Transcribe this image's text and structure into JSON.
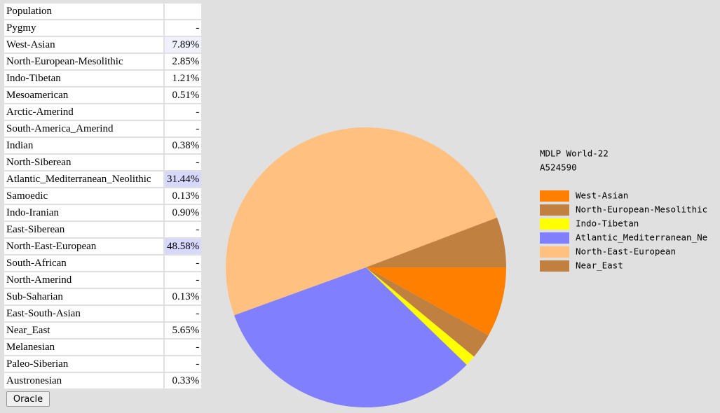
{
  "table": {
    "header": {
      "title": "Population"
    },
    "rows": [
      [
        "Pygmy",
        "-"
      ],
      [
        "West-Asian",
        "7.89%"
      ],
      [
        "North-European-Mesolithic",
        "2.85%"
      ],
      [
        "Indo-Tibetan",
        "1.21%"
      ],
      [
        "Mesoamerican",
        "0.51%"
      ],
      [
        "Arctic-Amerind",
        "-"
      ],
      [
        "South-America_Amerind",
        "-"
      ],
      [
        "Indian",
        "0.38%"
      ],
      [
        "North-Siberean",
        "-"
      ],
      [
        "Atlantic_Mediterranean_Neolithic",
        "31.44%"
      ],
      [
        "Samoedic",
        "0.13%"
      ],
      [
        "Indo-Iranian",
        "0.90%"
      ],
      [
        "East-Siberean",
        "-"
      ],
      [
        "North-East-European",
        "48.58%"
      ],
      [
        "South-African",
        "-"
      ],
      [
        "North-Amerind",
        "-"
      ],
      [
        "Sub-Saharian",
        "0.13%"
      ],
      [
        "East-South-Asian",
        "-"
      ],
      [
        "Near_East",
        "5.65%"
      ],
      [
        "Melanesian",
        "-"
      ],
      [
        "Paleo-Siberian",
        "-"
      ],
      [
        "Austronesian",
        "0.33%"
      ]
    ]
  },
  "button": {
    "label": "Oracle"
  },
  "chart_data": {
    "type": "pie",
    "title": "MDLP World-22",
    "subtitle": "A524590",
    "categories": [
      "West-Asian",
      "North-European-Mesolithic",
      "Indo-Tibetan",
      "Atlantic_Mediterranean_Ne",
      "North-East-European",
      "Near_East"
    ],
    "values": [
      7.89,
      2.85,
      1.21,
      31.44,
      48.58,
      5.65
    ],
    "colors": [
      "#ff8000",
      "#c08040",
      "#ffff00",
      "#8080ff",
      "#ffc080",
      "#c08040"
    ]
  }
}
